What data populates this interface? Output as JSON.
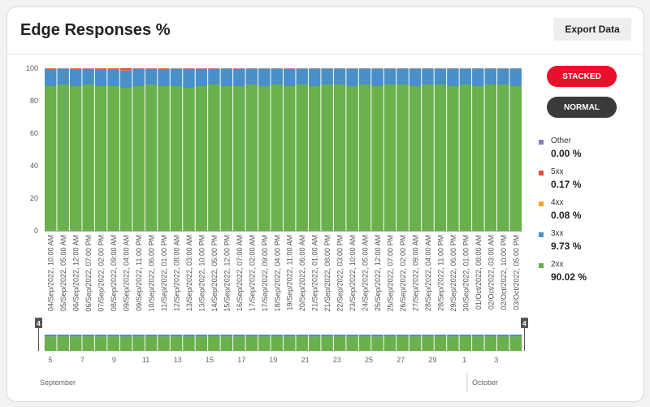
{
  "header": {
    "title": "Edge Responses %",
    "export_label": "Export Data"
  },
  "controls": {
    "stacked_label": "STACKED",
    "normal_label": "NORMAL"
  },
  "colors": {
    "2xx": "#6ab04c",
    "3xx": "#4a90c8",
    "4xx": "#f5a623",
    "5xx": "#e74c3c",
    "Other": "#8e7cc3"
  },
  "legend": [
    {
      "name": "Other",
      "value": "0.00 %",
      "color": "#8e7cc3"
    },
    {
      "name": "5xx",
      "value": "0.17 %",
      "color": "#e74c3c"
    },
    {
      "name": "4xx",
      "value": "0.08 %",
      "color": "#f5a623"
    },
    {
      "name": "3xx",
      "value": "9.73 %",
      "color": "#4a90c8"
    },
    {
      "name": "2xx",
      "value": "90.02 %",
      "color": "#6ab04c"
    }
  ],
  "navigator": {
    "day_ticks": [
      "5",
      "7",
      "9",
      "11",
      "13",
      "15",
      "17",
      "19",
      "21",
      "23",
      "25",
      "27",
      "29",
      "1",
      "3"
    ],
    "months": [
      "September",
      "October"
    ],
    "handle_labels": [
      "4",
      "4"
    ]
  },
  "chart_data": {
    "type": "bar",
    "stacked": true,
    "ylim": [
      0,
      100
    ],
    "yticks": [
      0,
      20,
      40,
      60,
      80,
      100
    ],
    "x_labels": [
      "04/Sep/2022, 10:00 AM",
      "05/Sep/2022, 05:00 AM",
      "06/Sep/2022, 12:00 AM",
      "06/Sep/2022, 07:00 PM",
      "07/Sep/2022, 02:00 PM",
      "08/Sep/2022, 09:00 AM",
      "09/Sep/2022, 04:00 AM",
      "09/Sep/2022, 11:00 PM",
      "10/Sep/2022, 06:00 PM",
      "11/Sep/2022, 01:00 PM",
      "12/Sep/2022, 08:00 AM",
      "13/Sep/2022, 03:00 AM",
      "13/Sep/2022, 10:00 PM",
      "14/Sep/2022, 05:00 PM",
      "15/Sep/2022, 12:00 PM",
      "16/Sep/2022, 07:00 AM",
      "17/Sep/2022, 02:00 AM",
      "17/Sep/2022, 09:00 PM",
      "18/Sep/2022, 04:00 PM",
      "19/Sep/2022, 11:00 AM",
      "20/Sep/2022, 06:00 AM",
      "21/Sep/2022, 01:00 AM",
      "21/Sep/2022, 08:00 PM",
      "22/Sep/2022, 03:00 PM",
      "23/Sep/2022, 10:00 AM",
      "24/Sep/2022, 05:00 AM",
      "25/Sep/2022, 12:00 AM",
      "25/Sep/2022, 07:00 PM",
      "26/Sep/2022, 02:00 PM",
      "27/Sep/2022, 09:00 AM",
      "28/Sep/2022, 04:00 AM",
      "28/Sep/2022, 11:00 PM",
      "29/Sep/2022, 06:00 PM",
      "30/Sep/2022, 01:00 PM",
      "01/Oct/2022, 08:00 AM",
      "02/Oct/2022, 03:00 AM",
      "02/Oct/2022, 10:00 PM",
      "03/Oct/2022, 05:00 PM"
    ],
    "series": [
      {
        "name": "2xx",
        "values": [
          89,
          90,
          89,
          90,
          89,
          89,
          88,
          89,
          90,
          89,
          89,
          88,
          89,
          90,
          89,
          89,
          90,
          89,
          90,
          89,
          90,
          89,
          90,
          90,
          89,
          90,
          89,
          90,
          90,
          89,
          90,
          90,
          89,
          90,
          89,
          90,
          90,
          89
        ]
      },
      {
        "name": "3xx",
        "values": [
          10.6,
          9.8,
          10.6,
          9.7,
          10.5,
          10.5,
          10.6,
          10.7,
          9.7,
          10.6,
          10.8,
          11.7,
          10.7,
          9.7,
          10.8,
          10.7,
          9.8,
          10.8,
          9.8,
          10.7,
          9.8,
          10.8,
          9.8,
          9.8,
          10.8,
          9.8,
          10.8,
          9.8,
          9.8,
          10.8,
          9.8,
          9.8,
          10.8,
          9.8,
          10.8,
          9.8,
          9.8,
          10.8
        ]
      },
      {
        "name": "4xx",
        "values": [
          0.1,
          0.1,
          0.1,
          0.1,
          0.1,
          0.1,
          0.1,
          0.1,
          0.1,
          0.1,
          0.1,
          0.1,
          0.1,
          0.1,
          0.1,
          0.1,
          0.1,
          0.1,
          0.1,
          0.1,
          0.1,
          0.1,
          0.1,
          0.1,
          0.1,
          0.1,
          0.1,
          0.1,
          0.1,
          0.1,
          0.1,
          0.1,
          0.1,
          0.1,
          0.1,
          0.1,
          0.1,
          0.1
        ]
      },
      {
        "name": "5xx",
        "values": [
          0.3,
          0.1,
          0.3,
          0.2,
          0.4,
          0.4,
          1.3,
          0.2,
          0.2,
          0.3,
          0.1,
          0.2,
          0.2,
          0.2,
          0.1,
          0.2,
          0.1,
          0.1,
          0.1,
          0.2,
          0.1,
          0.1,
          0.1,
          0.1,
          0.1,
          0.1,
          0.1,
          0.1,
          0.1,
          0.1,
          0.1,
          0.1,
          0.1,
          0.1,
          0.1,
          0.1,
          0.1,
          0.1
        ]
      },
      {
        "name": "Other",
        "values": [
          0,
          0,
          0,
          0,
          0,
          0,
          0,
          0,
          0,
          0,
          0,
          0,
          0,
          0,
          0,
          0,
          0,
          0,
          0,
          0,
          0,
          0,
          0,
          0,
          0,
          0,
          0,
          0,
          0,
          0,
          0,
          0,
          0,
          0,
          0,
          0,
          0,
          0
        ]
      }
    ]
  }
}
